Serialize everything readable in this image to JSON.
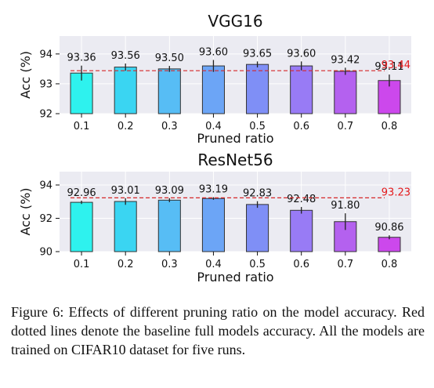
{
  "caption": "Figure 6: Effects of different pruning ratio on the model accuracy. Red dotted lines denote the baseline full models accuracy. All the models are trained on CIFAR10 dataset for five runs.",
  "chart_data": [
    {
      "type": "bar",
      "title": "VGG16",
      "xlabel": "Pruned ratio",
      "ylabel": "Acc (%)",
      "categories": [
        "0.1",
        "0.2",
        "0.3",
        "0.4",
        "0.5",
        "0.6",
        "0.7",
        "0.8"
      ],
      "values": [
        93.36,
        93.56,
        93.5,
        93.6,
        93.65,
        93.6,
        93.42,
        93.11
      ],
      "value_labels": [
        "93.36",
        "93.56",
        "93.50",
        "93.60",
        "93.65",
        "93.60",
        "93.42",
        "93.11"
      ],
      "errors": [
        0.25,
        0.12,
        0.1,
        0.2,
        0.1,
        0.15,
        0.12,
        0.2
      ],
      "baseline": 93.44,
      "baseline_label": "93.44",
      "ylim": [
        92,
        94.6
      ],
      "yticks": [
        92,
        93,
        94
      ],
      "ytick_labels": [
        "92",
        "93",
        "94"
      ],
      "grid": true,
      "colors": [
        "#2ef2ee",
        "#3ad5f2",
        "#57bdf5",
        "#6ca5f6",
        "#7f8ff6",
        "#987bf5",
        "#b461ef",
        "#cc48ec"
      ],
      "baseline_color": "#d62728"
    },
    {
      "type": "bar",
      "title": "ResNet56",
      "xlabel": "Pruned ratio",
      "ylabel": "Acc (%)",
      "categories": [
        "0.1",
        "0.2",
        "0.3",
        "0.4",
        "0.5",
        "0.6",
        "0.7",
        "0.8"
      ],
      "values": [
        92.96,
        93.01,
        93.09,
        93.19,
        92.83,
        92.48,
        91.8,
        90.86
      ],
      "value_labels": [
        "92.96",
        "93.01",
        "93.09",
        "93.19",
        "92.83",
        "92.48",
        "91.80",
        "90.86"
      ],
      "errors": [
        0.1,
        0.2,
        0.12,
        0.08,
        0.2,
        0.2,
        0.5,
        0.12
      ],
      "baseline": 93.23,
      "baseline_label": "93.23",
      "ylim": [
        90,
        94.8
      ],
      "yticks": [
        90,
        92,
        94
      ],
      "ytick_labels": [
        "90",
        "92",
        "94"
      ],
      "grid": true,
      "colors": [
        "#2ef2ee",
        "#3ad5f2",
        "#57bdf5",
        "#6ca5f6",
        "#7f8ff6",
        "#987bf5",
        "#b461ef",
        "#cc48ec"
      ],
      "baseline_color": "#d62728"
    }
  ]
}
